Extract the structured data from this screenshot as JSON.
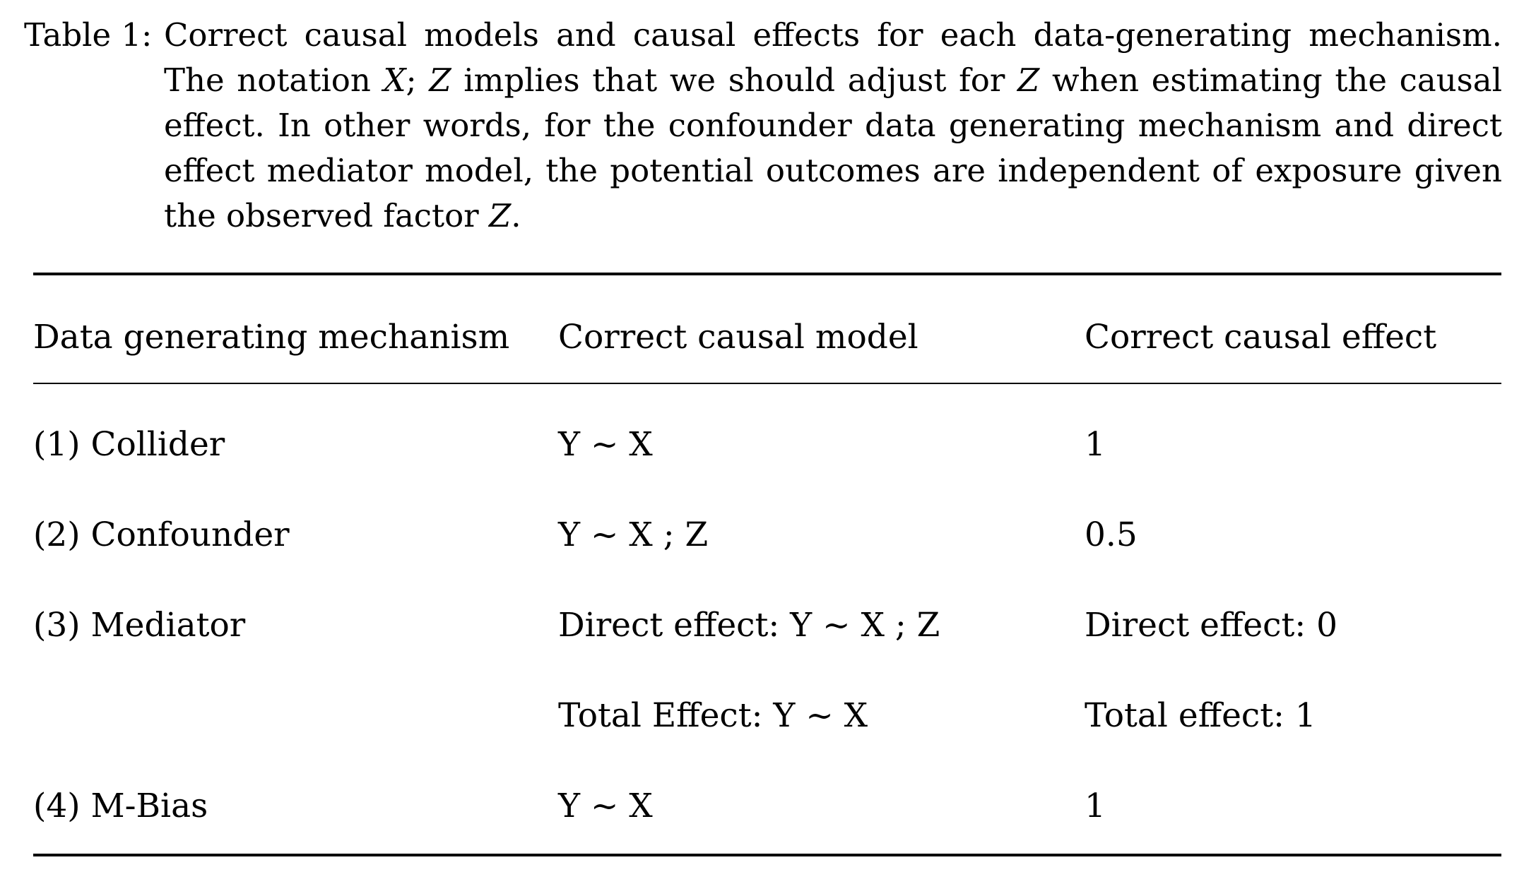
{
  "caption": {
    "label": "Table 1:",
    "text_part1": "Correct causal models and causal effects for each data-generating mechanism. The notation ",
    "math1": "X",
    "text_part2": "; ",
    "math2": "Z",
    "text_part3": " implies that we should adjust for ",
    "math3": "Z",
    "text_part4": " when estimating the causal effect. In other words, for the confounder data generating mechanism and direct effect mediator model, the potential outcomes are independent of exposure given the observed factor ",
    "math4": "Z",
    "text_part5": "."
  },
  "table": {
    "headers": [
      "Data generating mechanism",
      "Correct causal model",
      "Correct causal effect"
    ],
    "rows": [
      {
        "mechanism": "(1) Collider",
        "model": "Y ~ X",
        "effect": "1"
      },
      {
        "mechanism": "(2) Confounder",
        "model": "Y ~ X ; Z",
        "effect": "0.5"
      },
      {
        "mechanism": "(3) Mediator",
        "model": "Direct effect: Y ~ X ; Z",
        "effect": "Direct effect: 0"
      },
      {
        "mechanism": "",
        "model": "Total Effect: Y ~ X",
        "effect": "Total effect: 1"
      },
      {
        "mechanism": "(4) M-Bias",
        "model": "Y ~ X",
        "effect": "1"
      }
    ]
  }
}
